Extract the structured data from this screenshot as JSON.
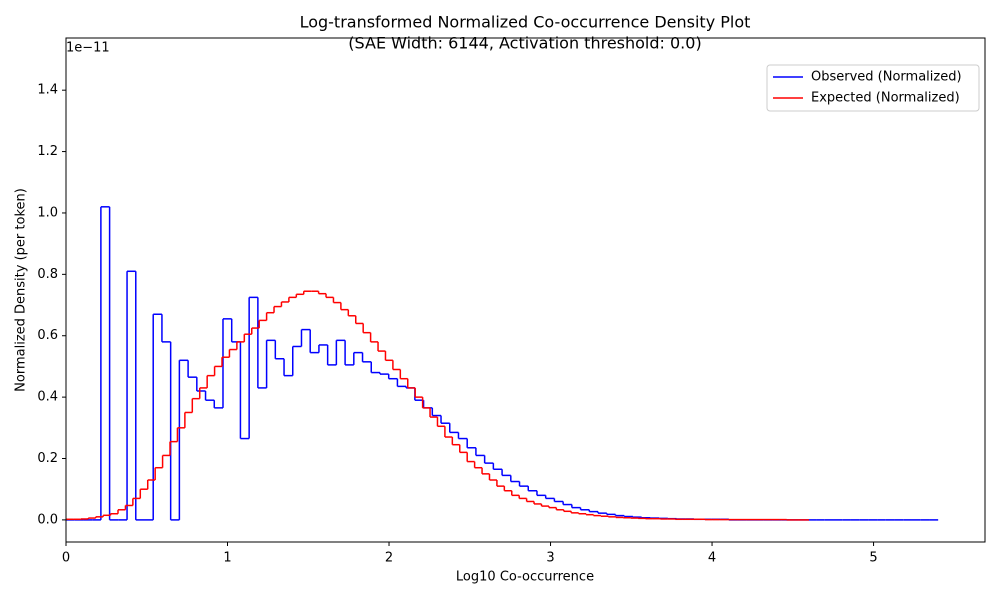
{
  "chart_data": {
    "type": "histogram-step",
    "title": "Log-transformed Normalized Co-occurrence Density Plot",
    "subtitle": "(SAE Width: 6144, Activation threshold: 0.0)",
    "x_label": "Log10 Co-occurrence",
    "y_label": "Normalized Density (per token)",
    "y_offset_label": "1e−11",
    "xlim": [
      0,
      5.69
    ],
    "ylim": [
      -0.072,
      1.57
    ],
    "xticks": [
      0,
      1,
      2,
      3,
      4,
      5
    ],
    "yticks": [
      {
        "value": 0,
        "label": "0.0"
      },
      {
        "value": 0.2,
        "label": "0.2"
      },
      {
        "value": 0.4,
        "label": "0.4"
      },
      {
        "value": 0.6,
        "label": "0.6"
      },
      {
        "value": 0.8,
        "label": "0.8"
      },
      {
        "value": 1.0,
        "label": "1.0"
      },
      {
        "value": 1.2,
        "label": "1.2"
      },
      {
        "value": 1.4,
        "label": "1.4"
      }
    ],
    "legend": "upper right",
    "series": [
      {
        "name": "Observed (Normalized)",
        "color": "#0000ff",
        "bins": [
          0,
          0.054,
          0.108,
          0.162,
          0.216,
          0.27,
          0.324,
          0.378,
          0.432,
          0.486,
          0.54,
          0.594,
          0.648,
          0.702,
          0.756,
          0.81,
          0.864,
          0.918,
          0.972,
          1.026,
          1.08,
          1.134,
          1.188,
          1.242,
          1.296,
          1.35,
          1.404,
          1.458,
          1.512,
          1.566,
          1.62,
          1.674,
          1.728,
          1.782,
          1.836,
          1.89,
          1.944,
          1.998,
          2.052,
          2.106,
          2.16,
          2.214,
          2.268,
          2.322,
          2.376,
          2.43,
          2.484,
          2.538,
          2.592,
          2.646,
          2.7,
          2.754,
          2.808,
          2.862,
          2.916,
          2.97,
          3.024,
          3.078,
          3.132,
          3.186,
          3.24,
          3.294,
          3.348,
          3.402,
          3.456,
          3.51,
          3.564,
          3.618,
          3.672,
          3.726,
          3.78,
          3.834,
          3.888,
          3.942,
          3.996,
          4.05,
          4.104,
          4.158,
          4.212,
          4.266,
          4.32,
          4.374,
          4.428,
          4.482,
          4.536,
          4.59,
          4.644,
          4.698,
          4.752,
          4.806,
          4.86,
          4.914,
          4.968,
          5.022,
          5.076,
          5.13,
          5.184,
          5.238,
          5.292,
          5.346,
          5.4
        ],
        "values": [
          0,
          0,
          0,
          0,
          1.02,
          0,
          0,
          0.81,
          0,
          0,
          0.67,
          0.58,
          0,
          0.52,
          0.465,
          0.42,
          0.39,
          0.365,
          0.655,
          0.58,
          0.265,
          0.725,
          0.43,
          0.585,
          0.525,
          0.47,
          0.565,
          0.62,
          0.545,
          0.57,
          0.505,
          0.585,
          0.505,
          0.545,
          0.515,
          0.48,
          0.475,
          0.46,
          0.435,
          0.43,
          0.39,
          0.365,
          0.34,
          0.315,
          0.285,
          0.265,
          0.235,
          0.21,
          0.185,
          0.165,
          0.145,
          0.125,
          0.11,
          0.095,
          0.08,
          0.07,
          0.06,
          0.05,
          0.04,
          0.033,
          0.027,
          0.022,
          0.018,
          0.014,
          0.011,
          0.009,
          0.007,
          0.006,
          0.005,
          0.004,
          0.003,
          0.003,
          0.002,
          0.002,
          0.002,
          0.002,
          0,
          0,
          0,
          0,
          0,
          0,
          0,
          0,
          0,
          0,
          0,
          0,
          0,
          0,
          0,
          0,
          0,
          0,
          0,
          0,
          0,
          0,
          0,
          0
        ]
      },
      {
        "name": "Expected (Normalized)",
        "color": "#ff0000",
        "bins": [
          0,
          0.046,
          0.092,
          0.138,
          0.184,
          0.23,
          0.276,
          0.322,
          0.368,
          0.414,
          0.46,
          0.506,
          0.552,
          0.598,
          0.644,
          0.69,
          0.736,
          0.782,
          0.828,
          0.874,
          0.92,
          0.966,
          1.012,
          1.058,
          1.104,
          1.15,
          1.196,
          1.242,
          1.288,
          1.334,
          1.38,
          1.426,
          1.472,
          1.518,
          1.564,
          1.61,
          1.656,
          1.702,
          1.748,
          1.794,
          1.84,
          1.886,
          1.932,
          1.978,
          2.024,
          2.07,
          2.116,
          2.162,
          2.208,
          2.254,
          2.3,
          2.346,
          2.392,
          2.438,
          2.484,
          2.53,
          2.576,
          2.622,
          2.668,
          2.714,
          2.76,
          2.806,
          2.852,
          2.898,
          2.944,
          2.99,
          3.036,
          3.082,
          3.128,
          3.174,
          3.22,
          3.266,
          3.312,
          3.358,
          3.404,
          3.45,
          3.496,
          3.542,
          3.588,
          3.634,
          3.68,
          3.726,
          3.772,
          3.818,
          3.864,
          3.91,
          3.956,
          4.002,
          4.048,
          4.094,
          4.14,
          4.186,
          4.232,
          4.278,
          4.324,
          4.37,
          4.416,
          4.462,
          4.508,
          4.554,
          4.6
        ],
        "values": [
          0.002,
          0.002,
          0.003,
          0.006,
          0.01,
          0.015,
          0.02,
          0.033,
          0.047,
          0.07,
          0.1,
          0.13,
          0.17,
          0.21,
          0.255,
          0.3,
          0.35,
          0.395,
          0.43,
          0.47,
          0.5,
          0.53,
          0.555,
          0.58,
          0.605,
          0.625,
          0.65,
          0.675,
          0.695,
          0.71,
          0.725,
          0.735,
          0.745,
          0.745,
          0.737,
          0.725,
          0.708,
          0.685,
          0.665,
          0.64,
          0.61,
          0.58,
          0.55,
          0.52,
          0.49,
          0.46,
          0.43,
          0.4,
          0.365,
          0.335,
          0.305,
          0.27,
          0.245,
          0.22,
          0.19,
          0.17,
          0.15,
          0.13,
          0.11,
          0.095,
          0.08,
          0.07,
          0.06,
          0.052,
          0.045,
          0.04,
          0.033,
          0.028,
          0.023,
          0.02,
          0.017,
          0.014,
          0.012,
          0.01,
          0.008,
          0.007,
          0.006,
          0.005,
          0.004,
          0.004,
          0.003,
          0.003,
          0.002,
          0.002,
          0.002,
          0.002,
          0.001,
          0.001,
          0.001,
          0.001,
          0.001,
          0.001,
          0.001,
          0.001,
          0.001,
          0.001,
          0.001,
          0,
          0,
          0
        ]
      }
    ]
  }
}
